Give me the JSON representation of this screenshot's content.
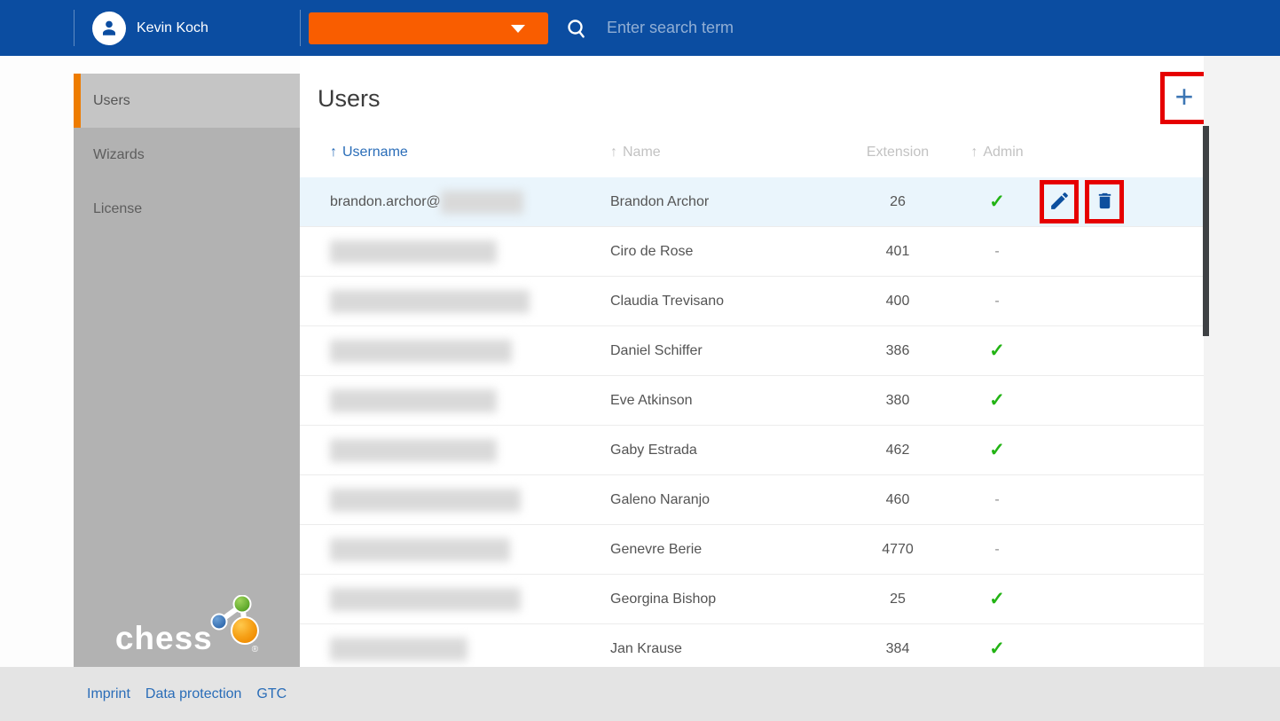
{
  "topbar": {
    "user_name": "Kevin Koch",
    "dropdown_label": "",
    "search_placeholder": "Enter search term"
  },
  "sidebar": {
    "items": [
      {
        "label": "Users",
        "active": true
      },
      {
        "label": "Wizards",
        "active": false
      },
      {
        "label": "License",
        "active": false
      }
    ],
    "logo_text": "chess",
    "logo_trademark": "®"
  },
  "main": {
    "title": "Users",
    "add_button_label": "+",
    "table": {
      "sort_arrow": "↑",
      "admin_true_glyph": "✓",
      "admin_false_glyph": "-",
      "columns": [
        {
          "label": "Username",
          "sortable": true,
          "sorted": true
        },
        {
          "label": "Name",
          "sortable": true,
          "sorted": false
        },
        {
          "label": "Extension",
          "sortable": false,
          "sorted": false
        },
        {
          "label": "Admin",
          "sortable": true,
          "sorted": false
        }
      ],
      "rows": [
        {
          "username": "brandon.archor@",
          "redact_width": 93,
          "name": "Brandon Archor",
          "extension": "26",
          "admin": true,
          "selected": true,
          "has_actions": true
        },
        {
          "username": "",
          "redact_width": 188,
          "name": "Ciro de Rose",
          "extension": "401",
          "admin": false,
          "selected": false,
          "has_actions": false
        },
        {
          "username": "",
          "redact_width": 225,
          "name": "Claudia Trevisano",
          "extension": "400",
          "admin": false,
          "selected": false,
          "has_actions": false
        },
        {
          "username": "",
          "redact_width": 205,
          "name": "Daniel Schiffer",
          "extension": "386",
          "admin": true,
          "selected": false,
          "has_actions": false
        },
        {
          "username": "",
          "redact_width": 188,
          "name": "Eve Atkinson",
          "extension": "380",
          "admin": true,
          "selected": false,
          "has_actions": false
        },
        {
          "username": "",
          "redact_width": 188,
          "name": "Gaby Estrada",
          "extension": "462",
          "admin": true,
          "selected": false,
          "has_actions": false
        },
        {
          "username": "",
          "redact_width": 215,
          "name": "Galeno Naranjo",
          "extension": "460",
          "admin": false,
          "selected": false,
          "has_actions": false
        },
        {
          "username": "",
          "redact_width": 203,
          "name": "Genevre Berie",
          "extension": "4770",
          "admin": false,
          "selected": false,
          "has_actions": false
        },
        {
          "username": "",
          "redact_width": 215,
          "name": "Georgina Bishop",
          "extension": "25",
          "admin": true,
          "selected": false,
          "has_actions": false
        },
        {
          "username": "",
          "redact_width": 155,
          "name": "Jan Krause",
          "extension": "384",
          "admin": true,
          "selected": false,
          "has_actions": false
        }
      ]
    }
  },
  "footer": {
    "links": [
      "Imprint",
      "Data protection",
      "GTC"
    ]
  },
  "colors": {
    "topbar_blue": "#0b4da1",
    "accent_orange": "#f95d00",
    "sidebar_accent": "#ee7c00",
    "link_blue": "#2a6db8",
    "check_green": "#22b314",
    "icon_blue": "#0d4f9e",
    "annotation_red": "#e60000",
    "selected_row": "#eaf5fc"
  }
}
